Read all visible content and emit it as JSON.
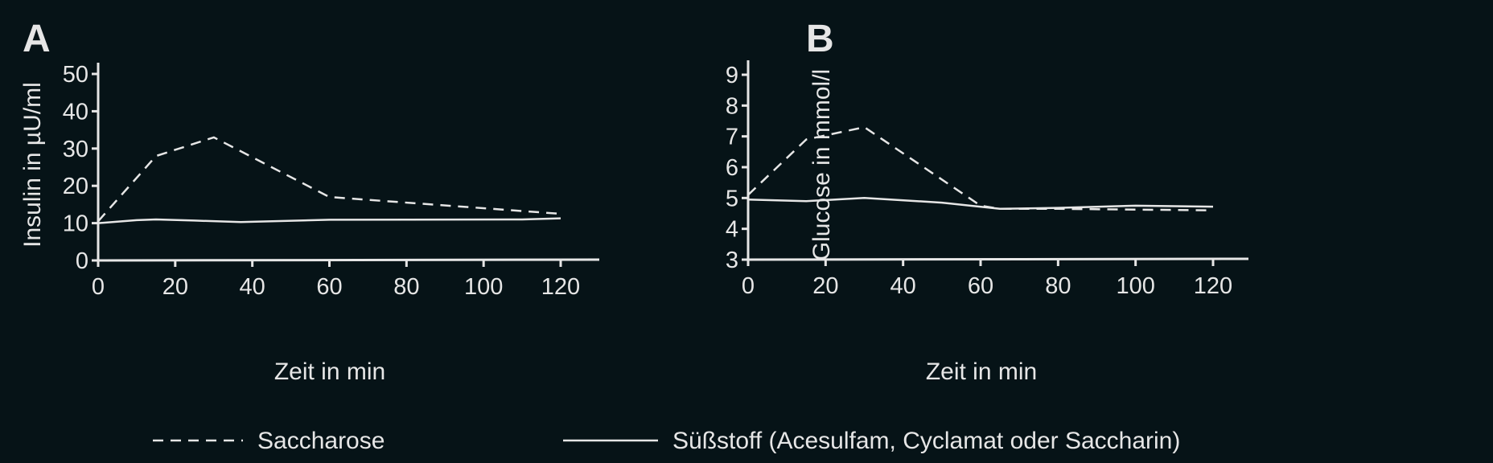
{
  "chart_data": [
    {
      "type": "line",
      "panel_label": "A",
      "xlabel": "Zeit in min",
      "ylabel": "Insulin in µU/ml",
      "xlim": [
        0,
        120
      ],
      "ylim": [
        0,
        50
      ],
      "xticks": [
        "0",
        "20",
        "40",
        "60",
        "80",
        "100",
        "120"
      ],
      "yticks": [
        "0",
        "10",
        "20",
        "30",
        "40",
        "50"
      ],
      "grid": false,
      "series": [
        {
          "name": "Saccharose",
          "style": "dashed",
          "x": [
            0,
            15,
            30,
            60,
            120
          ],
          "y": [
            10.5,
            28,
            33,
            17,
            12.5
          ]
        },
        {
          "name": "Süßstoff (Acesulfam, Cyclamat oder Saccharin)",
          "style": "solid",
          "x": [
            0,
            10,
            15,
            25,
            37,
            60,
            110,
            120
          ],
          "y": [
            10,
            10.8,
            11,
            10.7,
            10.3,
            10.9,
            11,
            11.3
          ]
        }
      ]
    },
    {
      "type": "line",
      "panel_label": "B",
      "xlabel": "Zeit in min",
      "ylabel": "Glucose in mmol/l",
      "xlim": [
        0,
        120
      ],
      "ylim": [
        3,
        9
      ],
      "xticks": [
        "0",
        "20",
        "40",
        "60",
        "80",
        "100",
        "120"
      ],
      "yticks": [
        "3",
        "4",
        "5",
        "6",
        "7",
        "8",
        "9"
      ],
      "grid": false,
      "series": [
        {
          "name": "Saccharose",
          "style": "dashed",
          "x": [
            0,
            15,
            30,
            60,
            65,
            80,
            120
          ],
          "y": [
            5.1,
            6.9,
            7.3,
            4.75,
            4.65,
            4.65,
            4.6
          ]
        },
        {
          "name": "Süßstoff (Acesulfam, Cyclamat oder Saccharin)",
          "style": "solid",
          "x": [
            0,
            15,
            30,
            50,
            65,
            80,
            100,
            120
          ],
          "y": [
            4.95,
            4.9,
            5.0,
            4.85,
            4.65,
            4.68,
            4.75,
            4.72
          ]
        }
      ]
    }
  ],
  "legend": {
    "placement": "bottom",
    "items": [
      {
        "label": "Saccharose",
        "style": "dashed"
      },
      {
        "label": "Süßstoff (Acesulfam, Cyclamat oder Saccharin)",
        "style": "solid"
      }
    ]
  },
  "colors": {
    "background": "#061317",
    "foreground": "#e6e6e6"
  }
}
